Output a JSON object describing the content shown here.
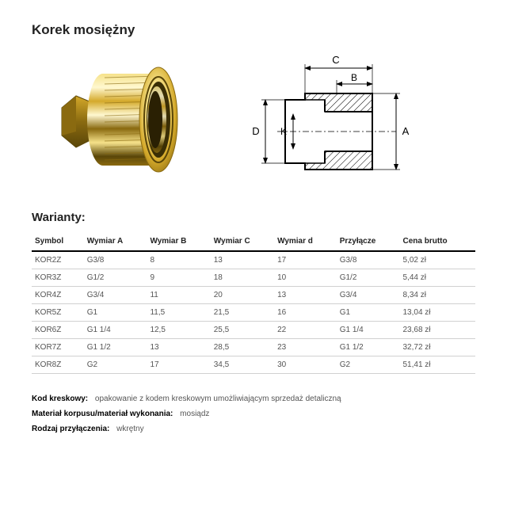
{
  "title": "Korek mosiężny",
  "variants_heading": "Warianty:",
  "diagram": {
    "labels": {
      "A": "A",
      "B": "B",
      "C": "C",
      "D": "D",
      "K": "K"
    },
    "stroke_main": "#000000",
    "stroke_thin": "#000000",
    "hatch_color": "#000000",
    "background": "#ffffff"
  },
  "photo": {
    "brass_light": "#f6e28a",
    "brass_mid": "#d4a92a",
    "brass_dark": "#8a6a10",
    "brass_highlight": "#fff8d0",
    "brass_shadow": "#5a4608"
  },
  "table": {
    "columns": [
      "Symbol",
      "Wymiar A",
      "Wymiar B",
      "Wymiar C",
      "Wymiar d",
      "Przyłącze",
      "Cena brutto"
    ],
    "rows": [
      [
        "KOR2Z",
        "G3/8",
        "8",
        "13",
        "17",
        "G3/8",
        "5,02 zł"
      ],
      [
        "KOR3Z",
        "G1/2",
        "9",
        "18",
        "10",
        "G1/2",
        "5,44 zł"
      ],
      [
        "KOR4Z",
        "G3/4",
        "11",
        "20",
        "13",
        "G3/4",
        "8,34 zł"
      ],
      [
        "KOR5Z",
        "G1",
        "11,5",
        "21,5",
        "16",
        "G1",
        "13,04 zł"
      ],
      [
        "KOR6Z",
        "G1 1/4",
        "12,5",
        "25,5",
        "22",
        "G1 1/4",
        "23,68 zł"
      ],
      [
        "KOR7Z",
        "G1 1/2",
        "13",
        "28,5",
        "23",
        "G1 1/2",
        "32,72 zł"
      ],
      [
        "KOR8Z",
        "G2",
        "17",
        "34,5",
        "30",
        "G2",
        "51,41 zł"
      ]
    ],
    "header_border": "#000000",
    "row_border": "#d0d0d0",
    "header_fontsize": 10,
    "cell_fontsize": 10
  },
  "meta": [
    {
      "label": "Kod kreskowy:",
      "value": "opakowanie z kodem kreskowym umożliwiającym sprzedaż detaliczną"
    },
    {
      "label": "Materiał korpusu/materiał wykonania:",
      "value": "mosiądz"
    },
    {
      "label": "Rodzaj przyłączenia:",
      "value": "wkrętny"
    }
  ]
}
